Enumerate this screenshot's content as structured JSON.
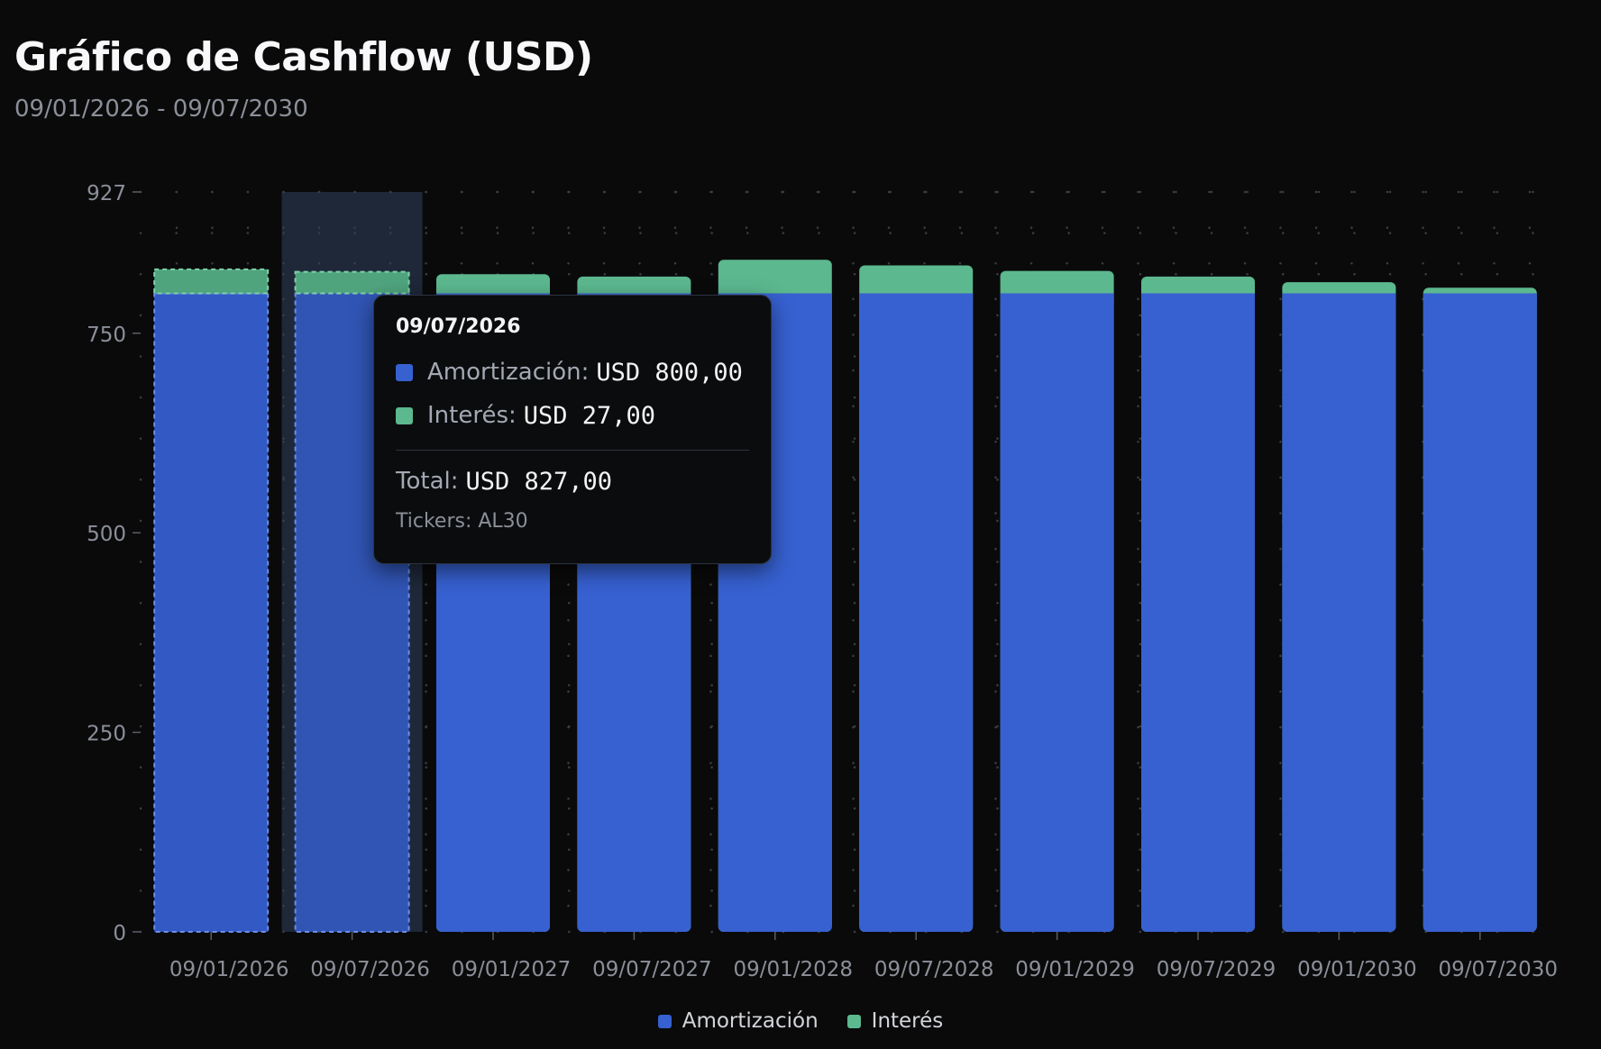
{
  "header": {
    "title": "Gráfico de Cashflow (USD)",
    "date_range": "09/01/2026 - 09/07/2030"
  },
  "colors": {
    "amortizacion": "#3761d1",
    "interes": "#5cb88f",
    "hover_band": "#1e2838",
    "background": "#0a0a0b"
  },
  "chart_data": {
    "type": "bar",
    "stacked": true,
    "categories": [
      "09/01/2026",
      "09/07/2026",
      "09/01/2027",
      "09/07/2027",
      "09/01/2028",
      "09/07/2028",
      "09/01/2029",
      "09/07/2029",
      "09/01/2030",
      "09/07/2030"
    ],
    "series": [
      {
        "name": "Amortización",
        "values": [
          800,
          800,
          800,
          800,
          800,
          800,
          800,
          800,
          800,
          800
        ]
      },
      {
        "name": "Interés",
        "values": [
          30,
          27,
          24,
          21,
          42,
          35,
          28,
          21,
          14,
          7
        ]
      }
    ],
    "ylim": [
      0,
      927
    ],
    "yticks": [
      0,
      250,
      500,
      750,
      927
    ],
    "grid": true,
    "legend": "bottom-center",
    "highlighted_categories": [
      "09/01/2026",
      "09/07/2026"
    ],
    "hovered_category": "09/07/2026"
  },
  "tooltip": {
    "date": "09/07/2026",
    "rows": [
      {
        "label": "Amortización:",
        "value": "USD 800,00"
      },
      {
        "label": "Interés:",
        "value": "USD 27,00"
      }
    ],
    "total_label": "Total:",
    "total_value": "USD 827,00",
    "tickers": "Tickers: AL30"
  },
  "legend": {
    "items": [
      {
        "label": "Amortización"
      },
      {
        "label": "Interés"
      }
    ]
  }
}
